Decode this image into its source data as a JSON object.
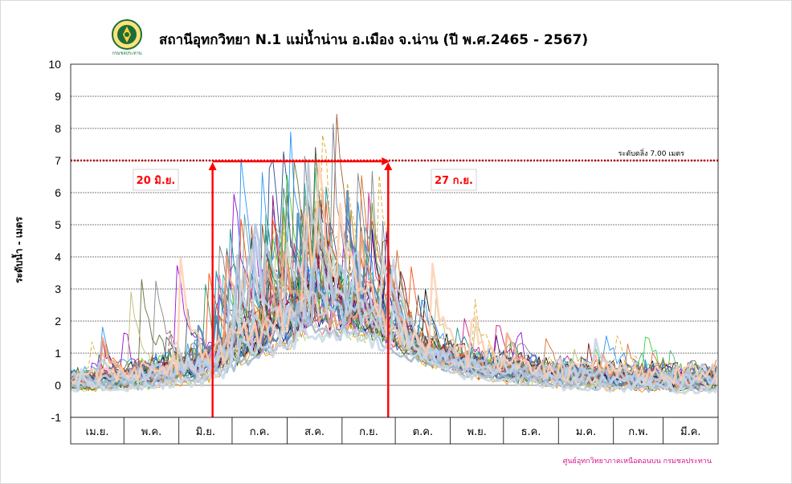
{
  "title": "สถานีอุทกวิทยา N.1 แม่น้ำน่าน อ.เมือง จ.น่าน (ปี พ.ศ.2465 - 2567)",
  "logo_text": "กรมชลประทาน",
  "credit": "ศูนย์อุทกวิทยาภาคเหนือตอนบน กรมชลประทาน",
  "colors": {
    "threshold": "#c00000",
    "marker": "#ff0000",
    "label_text": "#ff0000",
    "credit": "#d6168b",
    "grid": "#000000"
  },
  "chart_data": {
    "type": "line",
    "title": "สถานีอุทกวิทยา N.1 แม่น้ำน่าน อ.เมือง จ.น่าน (ปี พ.ศ.2465 - 2567)",
    "ylabel": "ระดับน้ำ  -  เมตร",
    "xlabel": "",
    "ylim": [
      -1,
      10
    ],
    "yticks": [
      -1,
      0,
      1,
      2,
      3,
      4,
      5,
      6,
      7,
      8,
      9,
      10
    ],
    "grid": true,
    "categories": [
      "เม.ย.",
      "พ.ค.",
      "มิ.ย.",
      "ก.ค.",
      "ส.ค.",
      "ก.ย.",
      "ต.ค.",
      "พ.ย.",
      "ธ.ค.",
      "ม.ค.",
      "ก.พ.",
      "มี.ค."
    ],
    "days_in_month": [
      30,
      31,
      30,
      31,
      31,
      30,
      31,
      30,
      31,
      31,
      28,
      31
    ],
    "threshold": {
      "value": 7.0,
      "label": "ระดับตลิ่ง 7.00  เมตร"
    },
    "markers": [
      {
        "label": "20 มิ.ย.",
        "month_index": 2,
        "day": 20
      },
      {
        "label": "27 ก.ย.",
        "month_index": 5,
        "day": 27
      }
    ],
    "marker_span_level": 7.0,
    "annual_envelope": {
      "note": "approximate daily water level envelope (many yearly series overlaid)",
      "month_low": [
        -0.4,
        -0.4,
        -0.3,
        0.3,
        0.9,
        0.8,
        0.3,
        -0.1,
        -0.3,
        -0.4,
        -0.45,
        -0.5
      ],
      "month_typical": [
        0.4,
        0.7,
        1.1,
        2.0,
        3.0,
        2.7,
        1.4,
        0.9,
        0.7,
        0.6,
        0.5,
        0.5
      ],
      "month_peak": [
        2.1,
        5.1,
        5.6,
        8.2,
        8.7,
        7.5,
        4.3,
        3.2,
        1.9,
        1.8,
        1.8,
        1.2
      ]
    },
    "series": [
      {
        "color": "#1f3f8f",
        "width": 0.9,
        "dash": false
      },
      {
        "color": "#000000",
        "width": 0.9,
        "dash": false
      },
      {
        "color": "#2e8b57",
        "width": 0.9,
        "dash": false
      },
      {
        "color": "#8b4513",
        "width": 0.9,
        "dash": false
      },
      {
        "color": "#9400d3",
        "width": 0.9,
        "dash": false
      },
      {
        "color": "#b22222",
        "width": 0.9,
        "dash": true
      },
      {
        "color": "#6b8e23",
        "width": 0.9,
        "dash": false
      },
      {
        "color": "#ff8c00",
        "width": 0.9,
        "dash": false
      },
      {
        "color": "#008b8b",
        "width": 0.9,
        "dash": false
      },
      {
        "color": "#c71585",
        "width": 0.9,
        "dash": false
      },
      {
        "color": "#4169e1",
        "width": 1.2,
        "dash": false
      },
      {
        "color": "#32cd32",
        "width": 0.9,
        "dash": false
      },
      {
        "color": "#808080",
        "width": 0.9,
        "dash": false
      },
      {
        "color": "#8b0000",
        "width": 0.9,
        "dash": false
      },
      {
        "color": "#daa520",
        "width": 0.9,
        "dash": true
      },
      {
        "color": "#483d8b",
        "width": 0.9,
        "dash": false
      },
      {
        "color": "#20b2aa",
        "width": 0.9,
        "dash": false
      },
      {
        "color": "#556b2f",
        "width": 0.9,
        "dash": false
      },
      {
        "color": "#ff69b4",
        "width": 0.9,
        "dash": false
      },
      {
        "color": "#a0522d",
        "width": 0.9,
        "dash": false
      },
      {
        "color": "#1e90ff",
        "width": 0.9,
        "dash": false
      },
      {
        "color": "#9acd32",
        "width": 0.9,
        "dash": true
      },
      {
        "color": "#4b0082",
        "width": 0.9,
        "dash": false
      },
      {
        "color": "#2f4f4f",
        "width": 0.9,
        "dash": false
      },
      {
        "color": "#cd853f",
        "width": 0.9,
        "dash": false
      },
      {
        "color": "#d2691e",
        "width": 0.9,
        "dash": false
      },
      {
        "color": "#708090",
        "width": 0.9,
        "dash": false
      },
      {
        "color": "#006400",
        "width": 0.9,
        "dash": false
      },
      {
        "color": "#bdb76b",
        "width": 0.9,
        "dash": false
      },
      {
        "color": "#800080",
        "width": 0.9,
        "dash": false
      },
      {
        "color": "#5f9ea0",
        "width": 0.9,
        "dash": false
      },
      {
        "color": "#000080",
        "width": 0.9,
        "dash": false
      },
      {
        "color": "#ff4500",
        "width": 0.9,
        "dash": false
      },
      {
        "color": "#3cb371",
        "width": 0.9,
        "dash": false
      },
      {
        "color": "#b8860b",
        "width": 0.9,
        "dash": false
      },
      {
        "color": "#4682b4",
        "width": 2.4,
        "dash": false
      },
      {
        "color": "#f4a582",
        "width": 2.6,
        "dash": false
      },
      {
        "color": "#c6d4e3",
        "width": 3.0,
        "dash": false
      },
      {
        "color": "#b0c4de",
        "width": 3.0,
        "dash": false
      },
      {
        "color": "#d8d8d8",
        "width": 2.6,
        "dash": false
      },
      {
        "color": "#bcd2ee",
        "width": 3.0,
        "dash": false
      },
      {
        "color": "#ffcfb0",
        "width": 2.6,
        "dash": false
      },
      {
        "color": "#9fb8d0",
        "width": 2.6,
        "dash": false
      },
      {
        "color": "#c8d8e8",
        "width": 3.0,
        "dash": false
      }
    ]
  }
}
